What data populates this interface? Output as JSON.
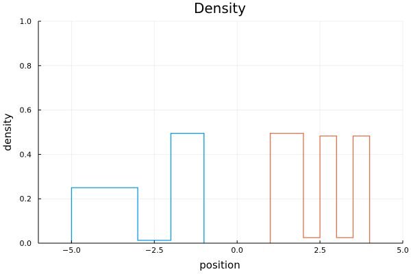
{
  "chart_data": {
    "type": "line",
    "title": "Density",
    "xlabel": "position",
    "ylabel": "density",
    "xlim": [
      -6,
      5
    ],
    "ylim": [
      0,
      1
    ],
    "xticks": [
      -5.0,
      -2.5,
      0.0,
      2.5,
      5.0
    ],
    "xtick_labels": [
      "−5.0",
      "−2.5",
      "0.0",
      "2.5",
      "5.0"
    ],
    "yticks": [
      0.0,
      0.2,
      0.4,
      0.6,
      0.8,
      1.0
    ],
    "ytick_labels": [
      "0.0",
      "0.2",
      "0.4",
      "0.6",
      "0.8",
      "1.0"
    ],
    "grid": true,
    "legend": "none",
    "series": [
      {
        "color": "#009AFA",
        "bin_edges": [
          -5,
          -3,
          -2,
          -1
        ],
        "densities": [
          0.25,
          0.0125,
          0.495
        ]
      },
      {
        "color": "#E26F46",
        "bin_edges": [
          1,
          2,
          2.5,
          3,
          3.5,
          4
        ],
        "densities": [
          0.495,
          0.025,
          0.483,
          0.025,
          0.483
        ]
      }
    ]
  }
}
